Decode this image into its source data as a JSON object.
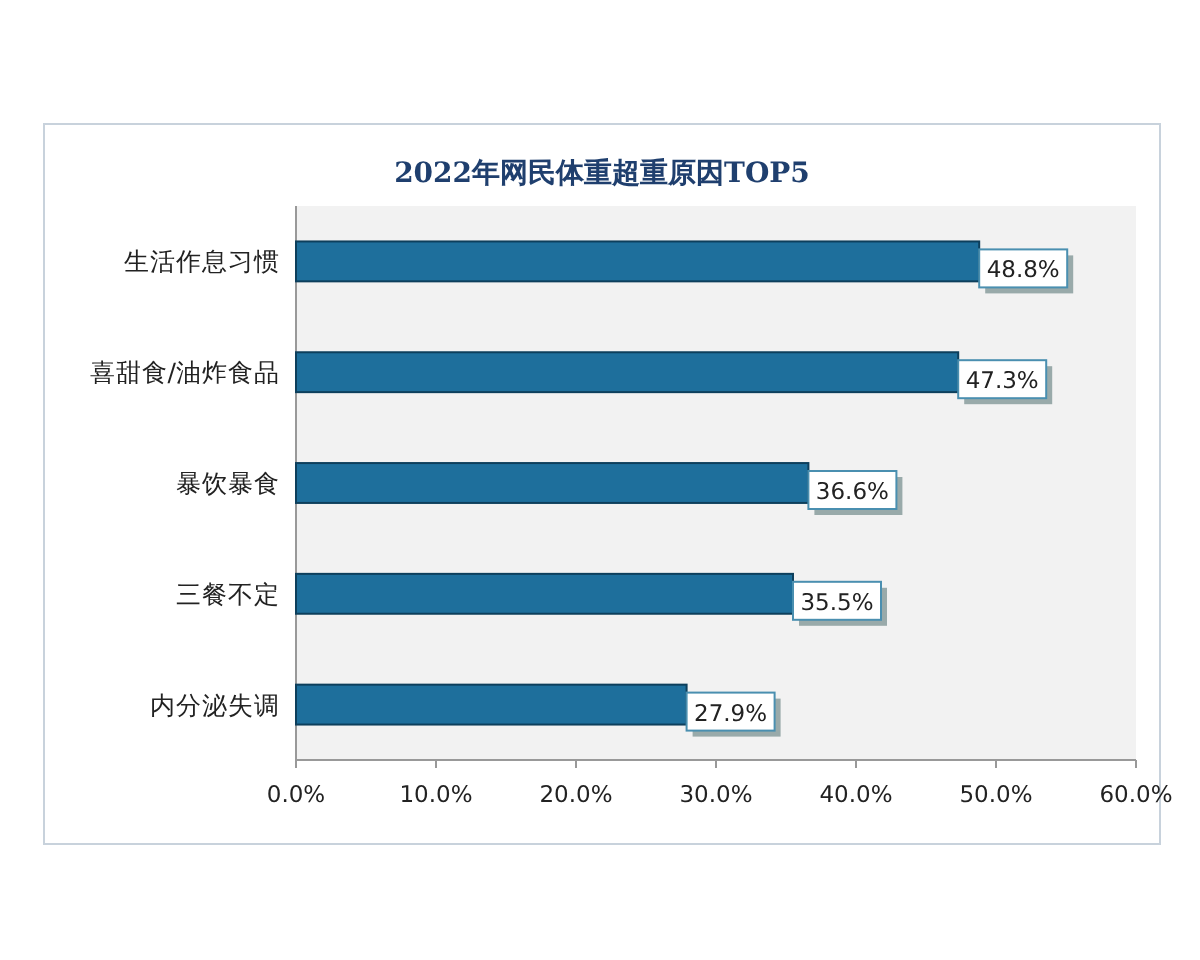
{
  "chart_data": {
    "type": "bar",
    "orientation": "horizontal",
    "title": "2022年网民体重超重原因TOP5",
    "categories": [
      "生活作息习惯",
      "喜甜食/油炸食品",
      "暴饮暴食",
      "三餐不定",
      "内分泌失调"
    ],
    "values": [
      48.8,
      47.3,
      36.6,
      35.5,
      27.9
    ],
    "value_labels": [
      "48.8%",
      "47.3%",
      "36.6%",
      "35.5%",
      "27.9%"
    ],
    "color": "#1e6f9c",
    "xlim": [
      0,
      60
    ],
    "xticks": [
      {
        "value": 0,
        "label": "0.0%"
      },
      {
        "value": 10,
        "label": "10.0%"
      },
      {
        "value": 20,
        "label": "20.0%"
      },
      {
        "value": 30,
        "label": "30.0%"
      },
      {
        "value": 40,
        "label": "40.0%"
      },
      {
        "value": 50,
        "label": "50.0%"
      },
      {
        "value": 60,
        "label": "60.0%"
      }
    ]
  }
}
